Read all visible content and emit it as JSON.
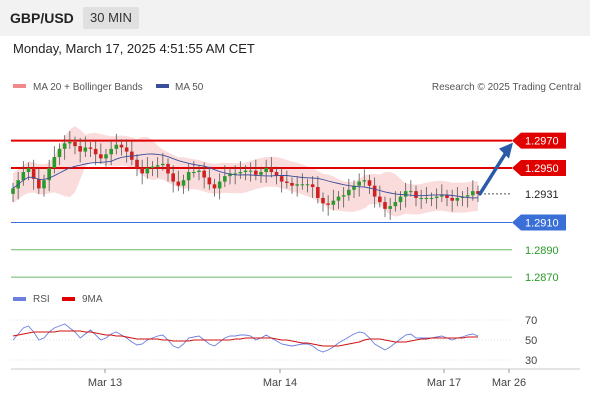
{
  "header": {
    "symbol": "GBP/USD",
    "timeframe": "30 MIN"
  },
  "timestamp": "Monday, March 17, 2025 4:51:55 AM CET",
  "legend": {
    "ma20": "MA 20 + Bollinger Bands",
    "ma50": "MA 50",
    "copyright": "Research © 2025 Trading Central",
    "rsi": "RSI",
    "ma9": "9MA"
  },
  "colors": {
    "resistance": "#e00000",
    "support": "#3a6fd8",
    "green": "#2a9a2a",
    "candle_up": "#2a9a2a",
    "candle_down": "#d02020",
    "band": "#f9d0d0",
    "ma50": "#3a4f9a",
    "rsi": "#6b7fe0",
    "arrow": "#2b5aa8"
  },
  "chart_data": [
    {
      "type": "candlestick",
      "title": "GBP/USD 30 MIN",
      "x_ticks": [
        "Mar 13",
        "Mar 14",
        "Mar 17",
        "Mar 26"
      ],
      "ylim": [
        1.2862,
        1.3002
      ],
      "levels": [
        {
          "label": "1.2970",
          "value": 1.297,
          "kind": "resistance"
        },
        {
          "label": "1.2950",
          "value": 1.295,
          "kind": "resistance"
        },
        {
          "label": "1.2931",
          "value": 1.2931,
          "kind": "last_price"
        },
        {
          "label": "1.2910",
          "value": 1.291,
          "kind": "support"
        },
        {
          "label": "1.2890",
          "value": 1.289,
          "kind": "target"
        },
        {
          "label": "1.2870",
          "value": 1.287,
          "kind": "target"
        }
      ],
      "close_series": [
        1.2935,
        1.2941,
        1.2947,
        1.295,
        1.2942,
        1.2935,
        1.2941,
        1.295,
        1.2958,
        1.2964,
        1.2968,
        1.2969,
        1.2966,
        1.2962,
        1.2965,
        1.2964,
        1.296,
        1.2957,
        1.296,
        1.2964,
        1.2967,
        1.2965,
        1.2962,
        1.2956,
        1.295,
        1.2946,
        1.295,
        1.2951,
        1.2952,
        1.2953,
        1.2946,
        1.294,
        1.2937,
        1.2941,
        1.2947,
        1.2947,
        1.2948,
        1.2943,
        1.2938,
        1.2935,
        1.294,
        1.2944,
        1.2946,
        1.2946,
        1.2947,
        1.2948,
        1.2948,
        1.2945,
        1.2947,
        1.295,
        1.2947,
        1.2944,
        1.294,
        1.2939,
        1.2937,
        1.2938,
        1.2938,
        1.2938,
        1.2936,
        1.2928,
        1.2924,
        1.2923,
        1.2926,
        1.2929,
        1.293,
        1.2934,
        1.2937,
        1.294,
        1.2941,
        1.2937,
        1.2929,
        1.2925,
        1.292,
        1.2922,
        1.2925,
        1.2929,
        1.2933,
        1.2933,
        1.2928,
        1.2928,
        1.2928,
        1.2928,
        1.2929,
        1.293,
        1.2928,
        1.2926,
        1.2928,
        1.2929,
        1.293,
        1.2933,
        1.2931
      ],
      "forecast_arrow": {
        "from": 1.2931,
        "to": 1.297
      },
      "series": [
        {
          "name": "MA 20 + Bollinger Bands"
        },
        {
          "name": "MA 50"
        }
      ]
    },
    {
      "type": "line",
      "title": "RSI",
      "y_ticks": [
        70,
        50,
        30
      ],
      "ylim": [
        22,
        80
      ],
      "rsi_values": [
        50,
        56,
        62,
        64,
        58,
        50,
        52,
        58,
        62,
        64,
        66,
        62,
        58,
        52,
        56,
        60,
        55,
        50,
        52,
        56,
        58,
        55,
        52,
        48,
        45,
        46,
        50,
        52,
        54,
        55,
        50,
        44,
        42,
        46,
        52,
        53,
        54,
        50,
        46,
        44,
        48,
        52,
        54,
        54,
        55,
        55,
        54,
        50,
        52,
        55,
        52,
        49,
        46,
        45,
        44,
        45,
        46,
        46,
        44,
        40,
        38,
        40,
        43,
        47,
        50,
        53,
        56,
        58,
        57,
        52,
        46,
        43,
        40,
        43,
        47,
        51,
        55,
        56,
        52,
        52,
        52,
        52,
        53,
        54,
        52,
        50,
        52,
        53,
        55,
        56,
        54
      ],
      "ma9_values": [
        54,
        55,
        56,
        57,
        58,
        58,
        58,
        58,
        58,
        59,
        59,
        59,
        59,
        59,
        58,
        58,
        57,
        56,
        55,
        55,
        54,
        54,
        53,
        52,
        51,
        51,
        51,
        51,
        51,
        50,
        50,
        49,
        49,
        49,
        49,
        50,
        50,
        50,
        50,
        50,
        50,
        50,
        50,
        51,
        51,
        52,
        52,
        52,
        52,
        52,
        52,
        51,
        50,
        50,
        49,
        48,
        47,
        47,
        46,
        45,
        44,
        44,
        44,
        44,
        45,
        46,
        47,
        48,
        50,
        51,
        51,
        51,
        50,
        49,
        48,
        48,
        48,
        49,
        50,
        51,
        51,
        52,
        52,
        52,
        52,
        52,
        52,
        52,
        53,
        53,
        53
      ],
      "series": [
        {
          "name": "RSI"
        },
        {
          "name": "9MA"
        }
      ]
    }
  ]
}
